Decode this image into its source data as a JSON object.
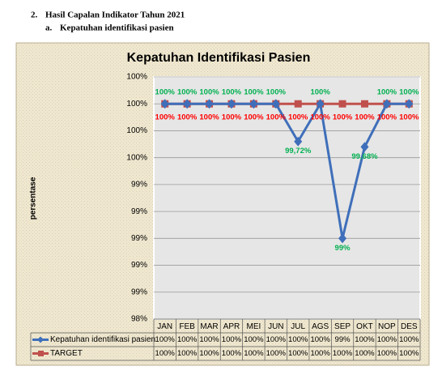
{
  "document": {
    "heading_number": "2.",
    "heading": "Hasil Capalan Indikator Tahun 2021",
    "subheading_letter": "a.",
    "subheading": "Kepatuhan identifikasi pasien"
  },
  "chart_data": {
    "type": "line",
    "title": "Kepatuhan Identifikasi Pasien",
    "ylabel": "persentase",
    "categories": [
      "JAN",
      "FEB",
      "MAR",
      "APR",
      "MEI",
      "JUN",
      "JUL",
      "AGS",
      "SEP",
      "OKT",
      "NOP",
      "DES"
    ],
    "series": [
      {
        "name": "Kepatuhan identifikasi pasien",
        "color": "#3f6fba",
        "label_color": "#00b050",
        "marker": "diamond",
        "values": [
          100,
          100,
          100,
          100,
          100,
          100,
          99.72,
          100,
          99,
          99.68,
          100,
          100
        ],
        "value_labels": [
          "100%",
          "100%",
          "100%",
          "100%",
          "100%",
          "100%",
          "99,72%",
          "100%",
          "99%",
          "99,68%",
          "100%",
          "100%"
        ],
        "table_labels": [
          "100%",
          "100%",
          "100%",
          "100%",
          "100%",
          "100%",
          "100%",
          "100%",
          "99%",
          "100%",
          "100%",
          "100%"
        ]
      },
      {
        "name": "TARGET",
        "color": "#c0504d",
        "label_color": "#ff0000",
        "marker": "square",
        "values": [
          100,
          100,
          100,
          100,
          100,
          100,
          100,
          100,
          100,
          100,
          100,
          100
        ],
        "value_labels": [
          "100%",
          "100%",
          "100%",
          "100%",
          "100%",
          "100%",
          "100%",
          "100%",
          "100%",
          "100%",
          "100%",
          "100%"
        ],
        "table_labels": [
          "100%",
          "100%",
          "100%",
          "100%",
          "100%",
          "100%",
          "100%",
          "100%",
          "100%",
          "100%",
          "100%",
          "100%"
        ]
      }
    ],
    "ylim": [
      98.4,
      100.2
    ],
    "yticks": [
      {
        "value": 98.4,
        "label": "98%"
      },
      {
        "value": 98.6,
        "label": "99%"
      },
      {
        "value": 98.8,
        "label": "99%"
      },
      {
        "value": 99,
        "label": "99%"
      },
      {
        "value": 99.2,
        "label": "99%"
      },
      {
        "value": 99.4,
        "label": "99%"
      },
      {
        "value": 99.6,
        "label": "100%"
      },
      {
        "value": 99.8,
        "label": "100%"
      },
      {
        "value": 100,
        "label": "100%"
      },
      {
        "value": 100.2,
        "label": "100%"
      }
    ],
    "grid": true
  }
}
